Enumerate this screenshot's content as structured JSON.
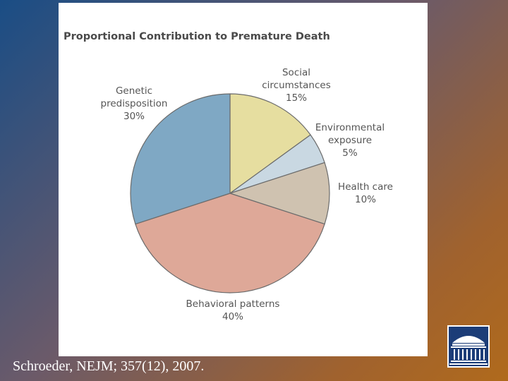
{
  "chart_data": {
    "type": "pie",
    "title": "Proportional Contribution to Premature Death",
    "slices": [
      {
        "name": "Social circumstances",
        "value": 15,
        "label": "15%",
        "color": "#e6dea0"
      },
      {
        "name": "Environmental exposure",
        "value": 5,
        "label": "5%",
        "color": "#c9d8e2"
      },
      {
        "name": "Health care",
        "value": 10,
        "label": "10%",
        "color": "#cfc2b0"
      },
      {
        "name": "Behavioral patterns",
        "value": 40,
        "label": "40%",
        "color": "#dea898"
      },
      {
        "name": "Genetic predisposition",
        "value": 30,
        "label": "30%",
        "color": "#7fa8c4"
      }
    ],
    "start_angle_deg": 0,
    "direction": "clockwise"
  },
  "labels": {
    "social": {
      "line1": "Social",
      "line2": "circumstances",
      "line3": "15%"
    },
    "environmental": {
      "line1": "Environmental",
      "line2": "exposure",
      "line3": "5%"
    },
    "health_care": {
      "line1": "Health care",
      "line2": "10%"
    },
    "behavioral": {
      "line1": "Behavioral patterns",
      "line2": "40%"
    },
    "genetic": {
      "line1": "Genetic",
      "line2": "predisposition",
      "line3": "30%"
    }
  },
  "citation": "Schroeder, NEJM; 357(12), 2007.",
  "logo": {
    "icon": "university-rotunda-icon",
    "color": "#1c3d78"
  }
}
